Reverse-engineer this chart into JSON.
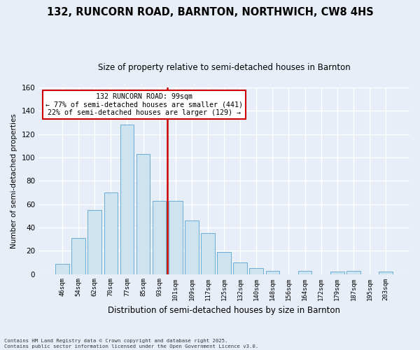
{
  "title": "132, RUNCORN ROAD, BARNTON, NORTHWICH, CW8 4HS",
  "subtitle": "Size of property relative to semi-detached houses in Barnton",
  "xlabel": "Distribution of semi-detached houses by size in Barnton",
  "ylabel": "Number of semi-detached properties",
  "bar_labels": [
    "46sqm",
    "54sqm",
    "62sqm",
    "70sqm",
    "77sqm",
    "85sqm",
    "93sqm",
    "101sqm",
    "109sqm",
    "117sqm",
    "125sqm",
    "132sqm",
    "140sqm",
    "148sqm",
    "156sqm",
    "164sqm",
    "172sqm",
    "179sqm",
    "187sqm",
    "195sqm",
    "203sqm"
  ],
  "bar_heights": [
    9,
    31,
    55,
    70,
    128,
    103,
    63,
    63,
    46,
    35,
    19,
    10,
    5,
    3,
    0,
    3,
    0,
    2,
    3,
    0,
    2
  ],
  "bar_color": "#cde4f0",
  "bar_edge_color": "#6aadd5",
  "vline_color": "#cc0000",
  "annotation_title": "132 RUNCORN ROAD: 99sqm",
  "annotation_line1": "← 77% of semi-detached houses are smaller (441)",
  "annotation_line2": "22% of semi-detached houses are larger (129) →",
  "ylim": [
    0,
    160
  ],
  "yticks": [
    0,
    20,
    40,
    60,
    80,
    100,
    120,
    140,
    160
  ],
  "footnote1": "Contains HM Land Registry data © Crown copyright and database right 2025.",
  "footnote2": "Contains public sector information licensed under the Open Government Licence v3.0.",
  "background_color": "#e8eef8",
  "grid_color": "#ffffff",
  "title_fontsize": 10.5,
  "subtitle_fontsize": 8.5,
  "annotation_box_color": "#ffffff",
  "annotation_box_edge": "#cc0000",
  "vline_bar_index": 7
}
